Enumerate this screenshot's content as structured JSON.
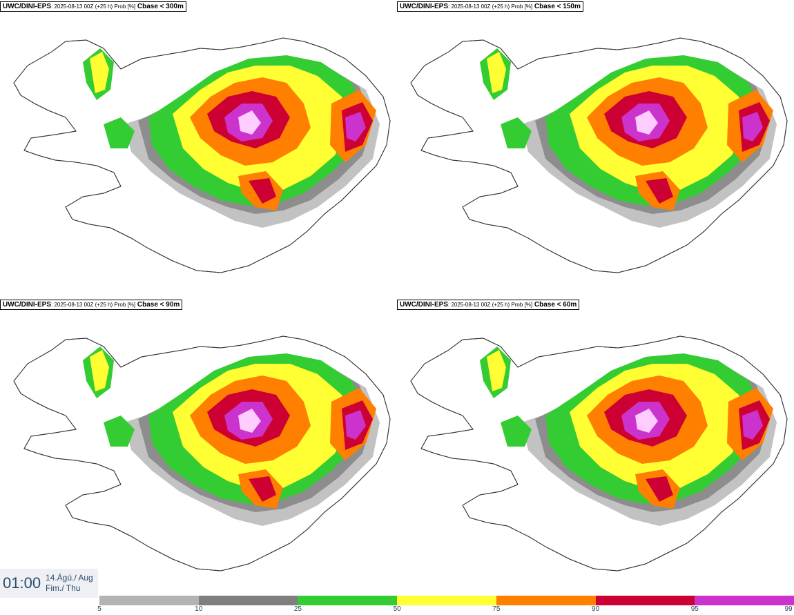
{
  "panels": [
    {
      "model": "UWC/DINI-EPS",
      "run_info": ": 2025-08-13 00Z (+25 h) Prob [%]",
      "variable": "Cbase < 300m"
    },
    {
      "model": "UWC/DINI-EPS",
      "run_info": ": 2025-08-13 00Z (+25 h) Prob [%]",
      "variable": "Cbase < 150m"
    },
    {
      "model": "UWC/DINI-EPS",
      "run_info": ": 2025-08-13 00Z (+25 h) Prob [%]",
      "variable": "Cbase < 90m"
    },
    {
      "model": "UWC/DINI-EPS",
      "run_info": ": 2025-08-13 00Z (+25 h) Prob [%]",
      "variable": "Cbase < 60m"
    }
  ],
  "valid_time": {
    "clock": "01:00",
    "date_line1": "14.Ágú./ Aug",
    "date_line2": "Fim./ Thu"
  },
  "legend": {
    "labels": [
      "5",
      "10",
      "25",
      "50",
      "75",
      "90",
      "95",
      "99"
    ],
    "colors": [
      "#b3b3b3",
      "#7f7f7f",
      "#33cc33",
      "#ffff33",
      "#ff7f00",
      "#cc0033",
      "#cc33cc",
      "#ffccff"
    ]
  }
}
